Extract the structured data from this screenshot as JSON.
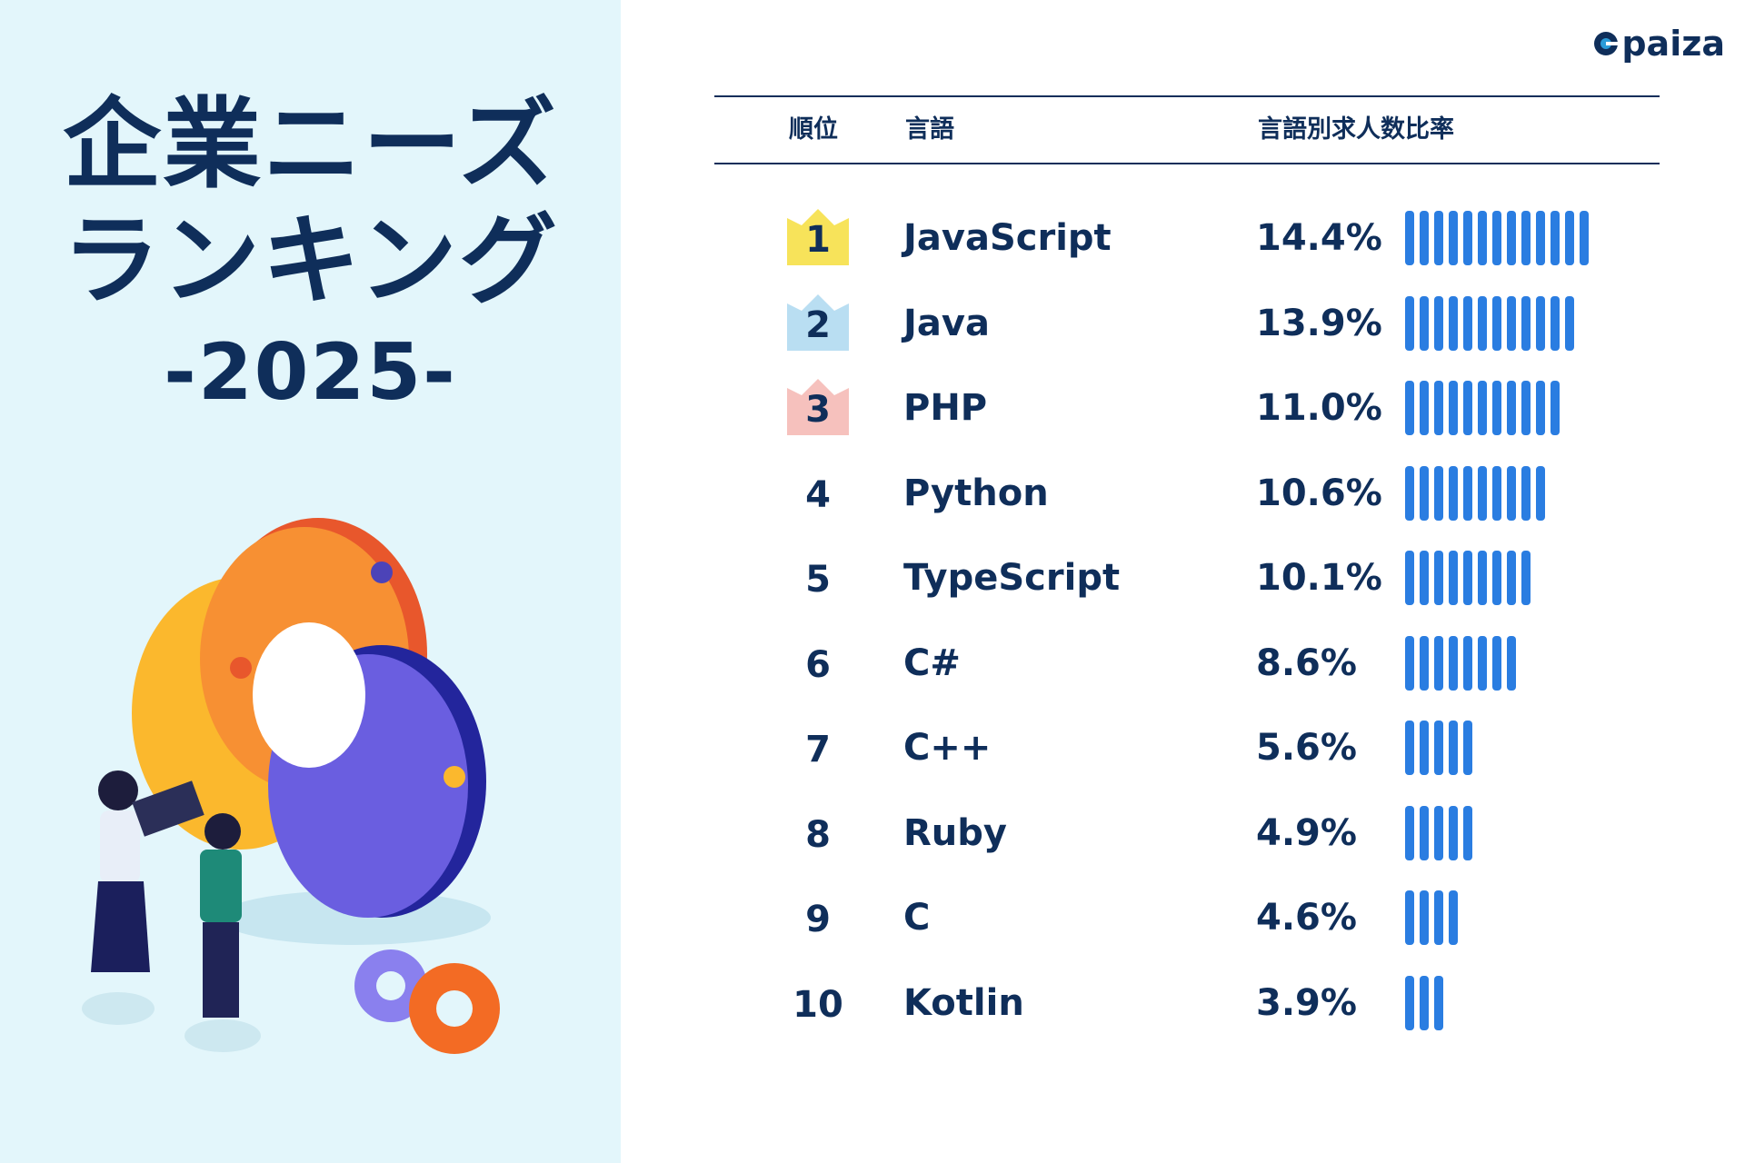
{
  "title": {
    "line1": "企業ニーズ",
    "line2": "ランキング",
    "line3": "-2025-"
  },
  "brand": {
    "name": "paiza",
    "color": "#0f2e5a"
  },
  "colors": {
    "bar": "#2a7de1",
    "text": "#0f2e5a",
    "panel": "#e3f6fb",
    "crown_gold": "#f7e35a",
    "crown_silver": "#b9def2",
    "crown_bronze": "#f6c1bd"
  },
  "table": {
    "headers": {
      "rank": "順位",
      "language": "言語",
      "ratio": "言語別求人数比率"
    }
  },
  "chart_data": {
    "type": "bar",
    "orientation": "horizontal",
    "grid": false,
    "categories": [
      "JavaScript",
      "Java",
      "PHP",
      "Python",
      "TypeScript",
      "C#",
      "C++",
      "Ruby",
      "C",
      "Kotlin"
    ],
    "rows": [
      {
        "rank": "1",
        "language": "JavaScript",
        "value": 14.4,
        "label": "14.4%",
        "crown": "gold"
      },
      {
        "rank": "2",
        "language": "Java",
        "value": 13.9,
        "label": "13.9%",
        "crown": "silver"
      },
      {
        "rank": "3",
        "language": "PHP",
        "value": 11.0,
        "label": "11.0%",
        "crown": "bronze"
      },
      {
        "rank": "4",
        "language": "Python",
        "value": 10.6,
        "label": "10.6%",
        "crown": ""
      },
      {
        "rank": "5",
        "language": "TypeScript",
        "value": 10.1,
        "label": "10.1%",
        "crown": ""
      },
      {
        "rank": "6",
        "language": "C#",
        "value": 8.6,
        "label": "8.6%",
        "crown": ""
      },
      {
        "rank": "7",
        "language": "C++",
        "value": 5.6,
        "label": "5.6%",
        "crown": ""
      },
      {
        "rank": "8",
        "language": "Ruby",
        "value": 4.9,
        "label": "4.9%",
        "crown": ""
      },
      {
        "rank": "9",
        "language": "C",
        "value": 4.6,
        "label": "4.6%",
        "crown": ""
      },
      {
        "rank": "10",
        "language": "Kotlin",
        "value": 3.9,
        "label": "3.9%",
        "crown": ""
      }
    ],
    "bar_segments": [
      13,
      12,
      11,
      10,
      9,
      8,
      5,
      5,
      4,
      3
    ]
  }
}
